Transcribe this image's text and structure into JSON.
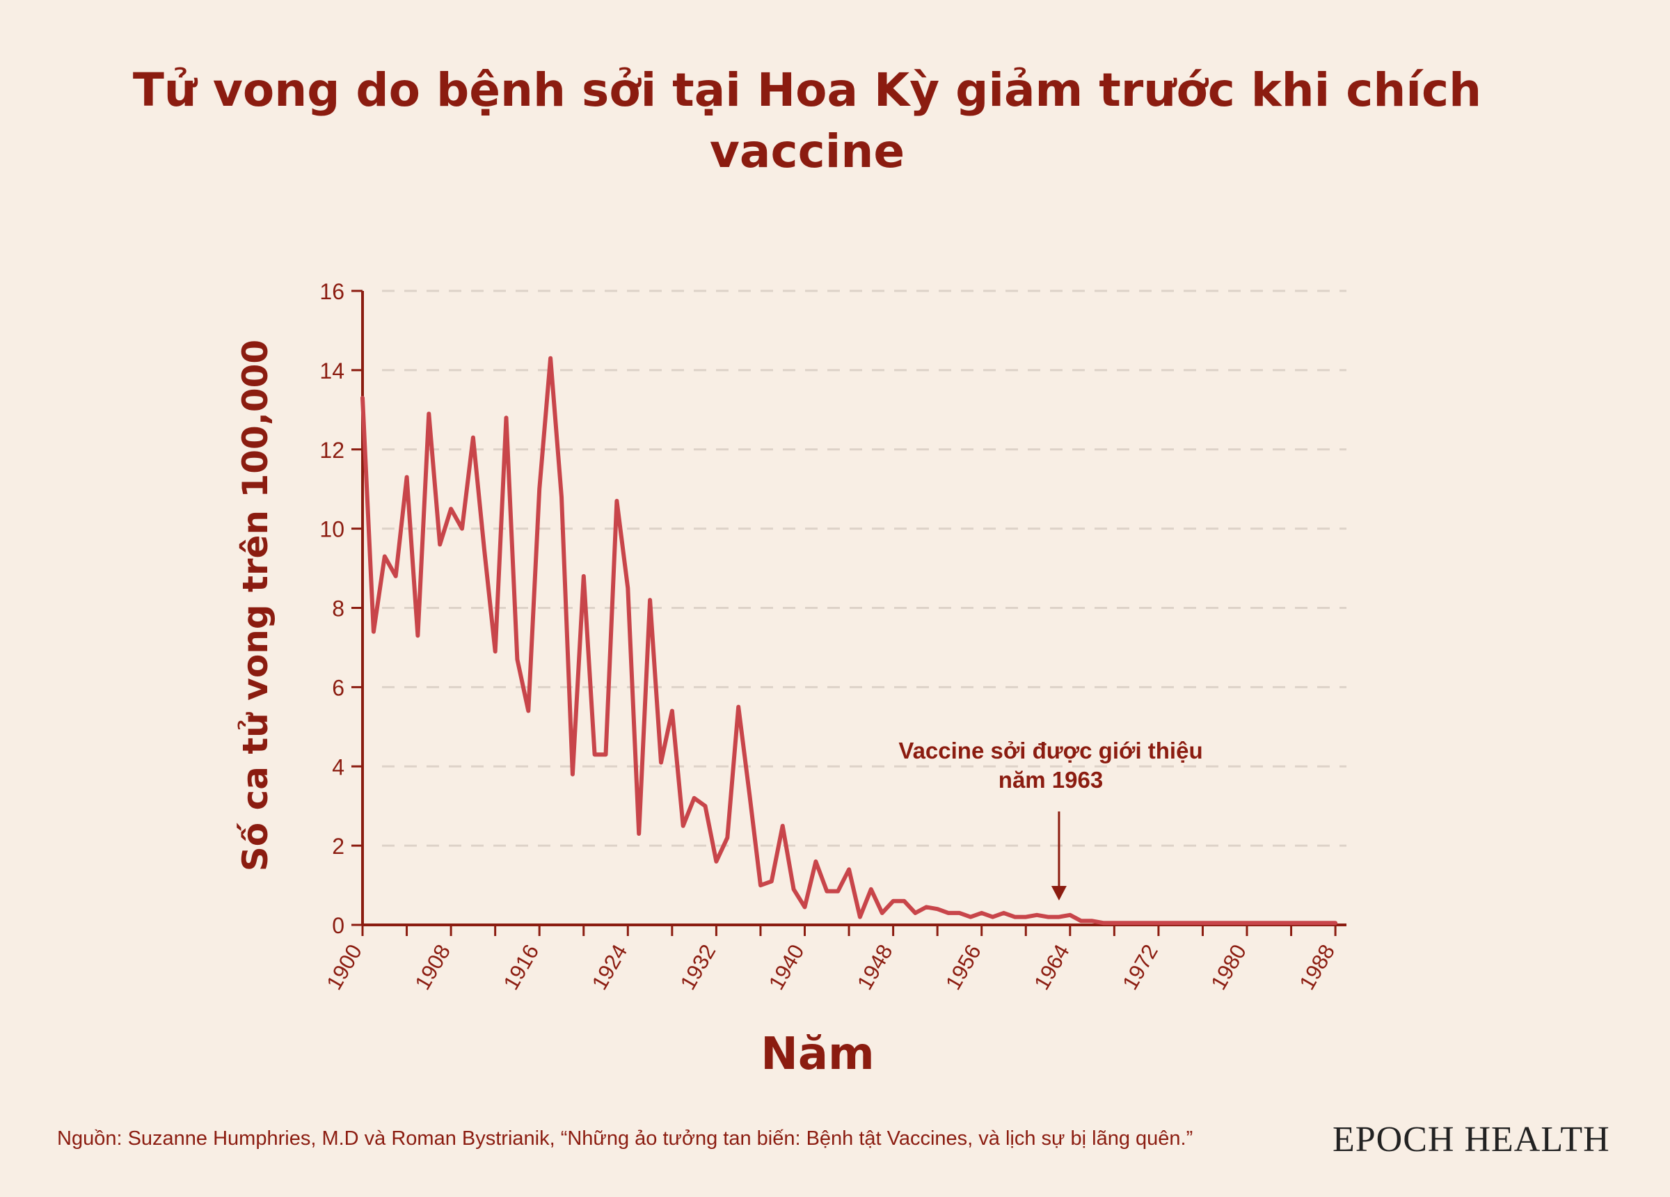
{
  "title": "Tử vong do bệnh sởi tại Hoa Kỳ giảm trước khi chích vaccine",
  "ylabel": "Số ca tử vong trên 100,000",
  "xlabel": "Năm",
  "annotation": "Vaccine sởi được giới thiệu năm 1963",
  "source": "Nguồn: Suzanne Humphries, M.D và Roman Bystrianik, “Những ảo tưởng tan biến: Bệnh tật Vaccines, và lịch sự bị lãng quên.”",
  "brand": "EPOCH HEALTH",
  "colors": {
    "line": "#c8454a",
    "axis": "#8b1c10",
    "grid": "#ddd2c8",
    "background": "#f8eee4"
  },
  "chart_data": {
    "type": "line",
    "title": "Tử vong do bệnh sởi tại Hoa Kỳ giảm trước khi chích vaccine",
    "xlabel": "Năm",
    "ylabel": "Số ca tử vong trên 100,000",
    "xlim": [
      1900,
      1989
    ],
    "ylim": [
      0,
      16
    ],
    "yticks": [
      0,
      2,
      4,
      6,
      8,
      10,
      12,
      14,
      16
    ],
    "xticks": [
      1900,
      1908,
      1916,
      1924,
      1932,
      1940,
      1948,
      1956,
      1964,
      1972,
      1980,
      1988
    ],
    "grid": "horizontal dashed",
    "annotation_x": 1963,
    "series": [
      {
        "x": [
          1900,
          1901,
          1902,
          1903,
          1904,
          1905,
          1906,
          1907,
          1908,
          1909,
          1910,
          1911,
          1912,
          1913,
          1914,
          1915,
          1916,
          1917,
          1918,
          1919,
          1920,
          1921,
          1922,
          1923,
          1924,
          1925,
          1926,
          1927,
          1928,
          1929,
          1930,
          1931,
          1932,
          1933,
          1934,
          1935,
          1936,
          1937,
          1938,
          1939,
          1940,
          1941,
          1942,
          1943,
          1944,
          1945,
          1946,
          1947,
          1948,
          1949,
          1950,
          1951,
          1952,
          1953,
          1954,
          1955,
          1956,
          1957,
          1958,
          1959,
          1960,
          1961,
          1962,
          1963,
          1964,
          1965,
          1966,
          1967,
          1968,
          1969,
          1970,
          1971,
          1972,
          1973,
          1974,
          1975,
          1976,
          1977,
          1978,
          1979,
          1980,
          1981,
          1982,
          1983,
          1984,
          1985,
          1986,
          1987,
          1988
        ],
        "values": [
          13.3,
          7.4,
          9.3,
          8.8,
          11.3,
          7.3,
          12.9,
          9.6,
          10.5,
          10.0,
          12.3,
          9.5,
          6.9,
          12.8,
          6.7,
          5.4,
          11.0,
          14.3,
          10.8,
          3.8,
          8.8,
          4.3,
          4.3,
          10.7,
          8.5,
          2.3,
          8.2,
          4.1,
          5.4,
          2.5,
          3.2,
          3.0,
          1.6,
          2.2,
          5.5,
          3.3,
          1.0,
          1.1,
          2.5,
          0.9,
          0.45,
          1.6,
          0.85,
          0.85,
          1.4,
          0.2,
          0.9,
          0.3,
          0.6,
          0.6,
          0.3,
          0.45,
          0.4,
          0.3,
          0.3,
          0.2,
          0.3,
          0.2,
          0.3,
          0.2,
          0.2,
          0.25,
          0.2,
          0.2,
          0.25,
          0.1,
          0.1,
          0.05,
          0.05,
          0.05,
          0.05,
          0.05,
          0.05,
          0.05,
          0.05,
          0.05,
          0.05,
          0.05,
          0.05,
          0.05,
          0.05,
          0.05,
          0.05,
          0.05,
          0.05,
          0.05,
          0.05,
          0.05,
          0.05
        ]
      }
    ]
  }
}
